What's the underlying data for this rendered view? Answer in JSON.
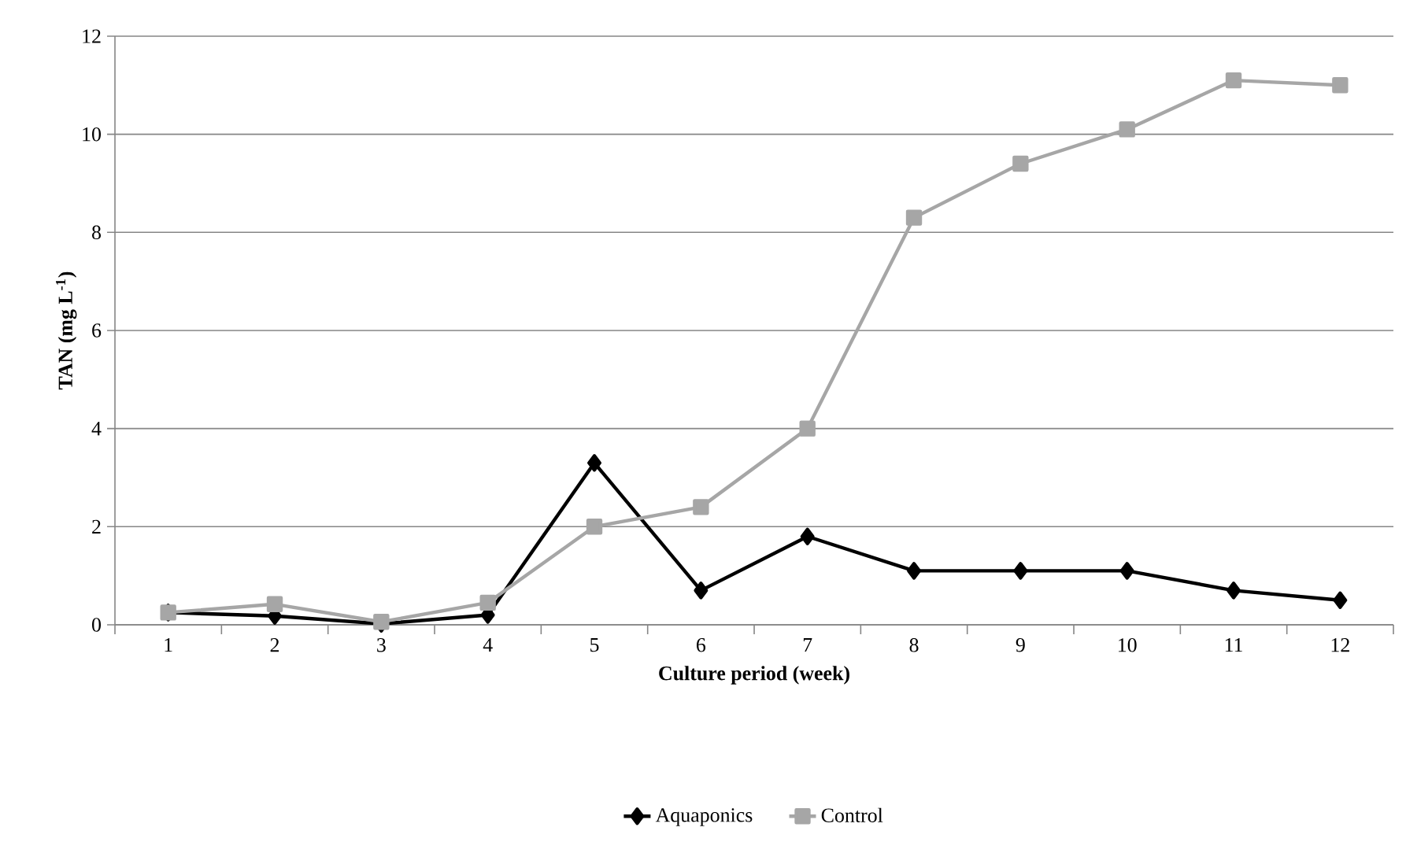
{
  "chart_data": {
    "type": "line",
    "xlabel": "Culture period (week)",
    "ylabel": "TAN (mg L$^{-1}$)",
    "categories": [
      "1",
      "2",
      "3",
      "4",
      "5",
      "6",
      "7",
      "8",
      "9",
      "10",
      "11",
      "12"
    ],
    "series": [
      {
        "name": "Aquaponics",
        "color": "#000000",
        "marker": "diamond",
        "values": [
          0.25,
          0.18,
          0.02,
          0.2,
          3.3,
          0.7,
          1.8,
          1.1,
          1.1,
          1.1,
          0.7,
          0.5
        ]
      },
      {
        "name": "Control",
        "color": "#a6a6a6",
        "marker": "square",
        "values": [
          0.25,
          0.42,
          0.06,
          0.45,
          2.0,
          2.4,
          4.0,
          8.3,
          9.4,
          10.1,
          11.1,
          11.0
        ]
      }
    ],
    "ylim": [
      0,
      12
    ],
    "yticks": [
      0,
      2,
      4,
      6,
      8,
      10,
      12
    ],
    "grid": "y",
    "legend": "bottom",
    "line_style": "solid"
  }
}
